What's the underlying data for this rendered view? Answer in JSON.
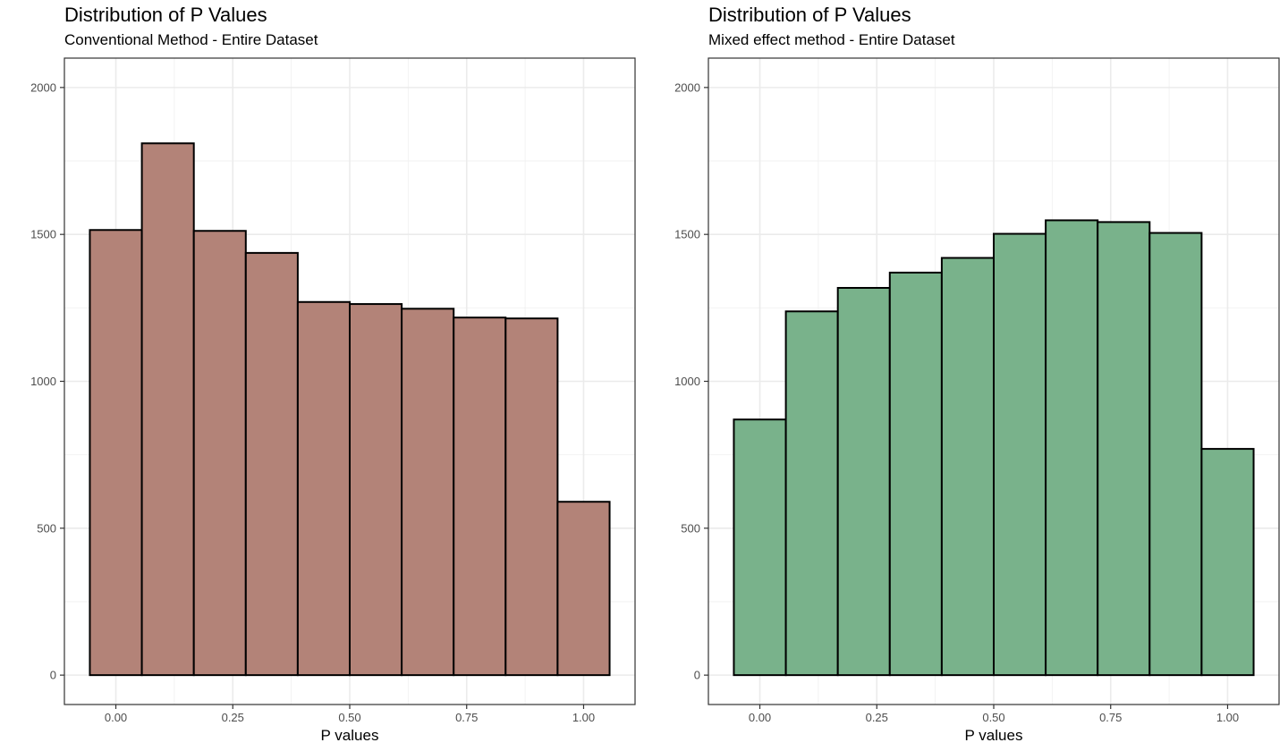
{
  "chart_data": [
    {
      "type": "bar",
      "title": "Distribution of P Values",
      "subtitle": "Conventional Method - Entire Dataset",
      "xlabel": "P values",
      "ylabel": "",
      "xlim": [
        -0.11,
        1.11
      ],
      "ylim": [
        -100,
        2100
      ],
      "x_ticks": [
        0.0,
        0.25,
        0.5,
        0.75,
        1.0
      ],
      "x_tick_labels": [
        "0.00",
        "0.25",
        "0.50",
        "0.75",
        "1.00"
      ],
      "y_ticks": [
        0,
        500,
        1000,
        1500,
        2000
      ],
      "y_tick_labels": [
        "0",
        "500",
        "1000",
        "1500",
        "2000"
      ],
      "bin_edges": [
        -0.0556,
        0.0556,
        0.1667,
        0.2778,
        0.3889,
        0.5,
        0.6111,
        0.7222,
        0.8333,
        0.9444,
        1.0556
      ],
      "values": [
        1515,
        1810,
        1512,
        1437,
        1270,
        1263,
        1247,
        1217,
        1214,
        590
      ],
      "fill": "#b38378",
      "outline": "#000000",
      "grid": true
    },
    {
      "type": "bar",
      "title": "Distribution of P Values",
      "subtitle": "Mixed effect method - Entire Dataset",
      "xlabel": "P values",
      "ylabel": "",
      "xlim": [
        -0.11,
        1.11
      ],
      "ylim": [
        -100,
        2100
      ],
      "x_ticks": [
        0.0,
        0.25,
        0.5,
        0.75,
        1.0
      ],
      "x_tick_labels": [
        "0.00",
        "0.25",
        "0.50",
        "0.75",
        "1.00"
      ],
      "y_ticks": [
        0,
        500,
        1000,
        1500,
        2000
      ],
      "y_tick_labels": [
        "0",
        "500",
        "1000",
        "1500",
        "2000"
      ],
      "bin_edges": [
        -0.0556,
        0.0556,
        0.1667,
        0.2778,
        0.3889,
        0.5,
        0.6111,
        0.7222,
        0.8333,
        0.9444,
        1.0556
      ],
      "values": [
        870,
        1238,
        1318,
        1370,
        1420,
        1502,
        1548,
        1542,
        1505,
        770
      ],
      "fill": "#79b28b",
      "outline": "#000000",
      "grid": true
    }
  ]
}
